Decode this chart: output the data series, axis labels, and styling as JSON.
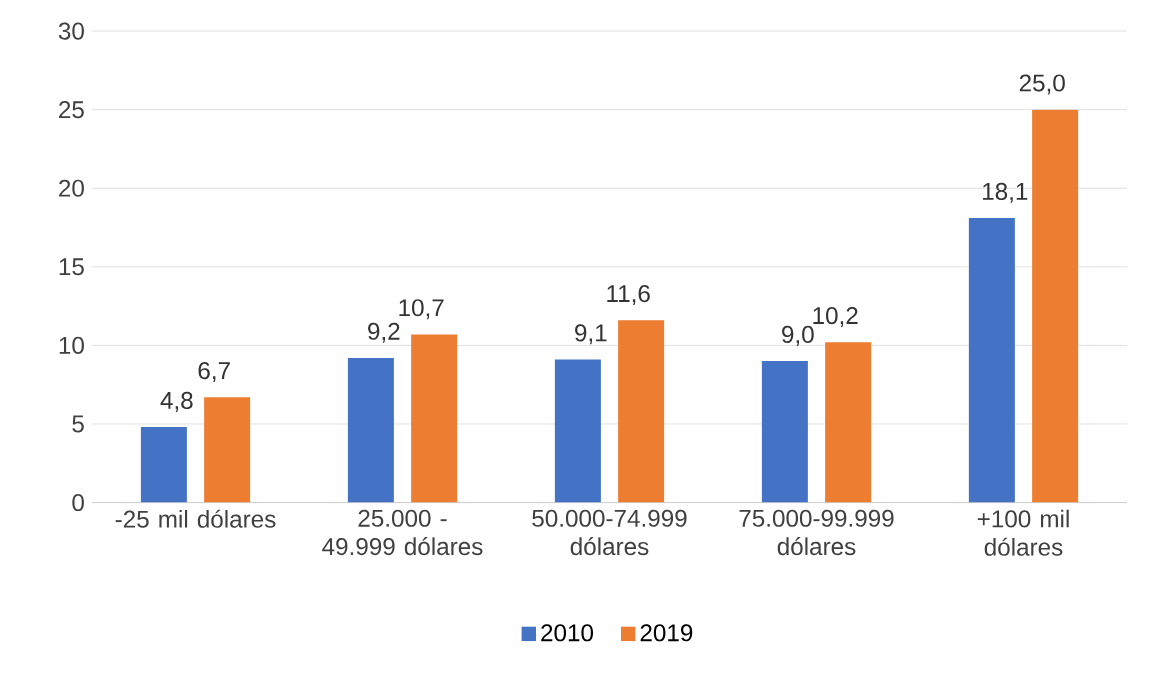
{
  "chart_data": {
    "type": "bar",
    "categories": [
      "-25 mil dólares",
      "25.000 - 49.999 dólares",
      "50.000-74.999 dólares",
      "75.000-99.999 dólares",
      "+100 mil dólares"
    ],
    "series": [
      {
        "name": "2010",
        "color": "#4472c4",
        "values": [
          4.8,
          9.2,
          9.1,
          9.0,
          18.1
        ],
        "value_labels": [
          "4,8",
          "9,2",
          "9,1",
          "9,0",
          "18,1"
        ]
      },
      {
        "name": "2019",
        "color": "#ed7d31",
        "values": [
          6.7,
          10.7,
          11.6,
          10.2,
          25.0
        ],
        "value_labels": [
          "6,7",
          "10,7",
          "11,6",
          "10,2",
          "25,0"
        ]
      }
    ],
    "ylim": [
      0,
      30
    ],
    "yticks": [
      0,
      5,
      10,
      15,
      20,
      25,
      30
    ],
    "grid": "y",
    "legend": "bottom"
  }
}
